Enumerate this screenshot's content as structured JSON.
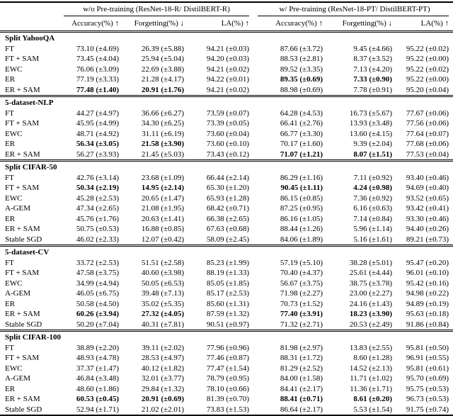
{
  "table": {
    "groups": [
      {
        "label": "w/o Pre-training (ResNet-18-R/ DistilBERT-R)"
      },
      {
        "label": "w/ Pre-training (ResNet-18-PT/ DistilBERT-PT)"
      }
    ],
    "columns": [
      "Accuracy(%) ↑",
      "Forgetting(%) ↓",
      "LA(%) ↑",
      "Accuracy(%) ↑",
      "Forgetting(%) ↓",
      "LA(%) ↑"
    ],
    "sections": [
      {
        "name": "Split YahooQA",
        "rows": [
          {
            "method": "FT",
            "values": [
              "73.10 (±4.69)",
              "26.39 (±5.88)",
              "94.21 (±0.03)",
              "87.66 (±3.72)",
              "9.45 (±4.66)",
              "95.22 (±0.02)"
            ],
            "bold": []
          },
          {
            "method": "FT + SAM",
            "values": [
              "73.45 (±4.04)",
              "25.94 (±5.04)",
              "94.20 (±0.03)",
              "88.53 (±2.81)",
              "8.37 (±3.52)",
              "95.22 (±0.00)"
            ],
            "bold": []
          },
          {
            "method": "EWC",
            "values": [
              "76.06 (±3.09)",
              "22.69 (±3.88)",
              "94.21 (±0.02)",
              "89.52 (±3.35)",
              "7.13 (±4.20)",
              "95.22 (±0.02)"
            ],
            "bold": []
          },
          {
            "method": "ER",
            "values": [
              "77.19 (±3.33)",
              "21.28 (±4.17)",
              "94.22 (±0.01)",
              "89.35 (±0.69)",
              "7.33 (±0.90)",
              "95.22 (±0.00)"
            ],
            "bold": [
              3,
              4
            ]
          },
          {
            "method": "ER + SAM",
            "values": [
              "77.48 (±1.40)",
              "20.91 (±1.76)",
              "94.21 (±0.02)",
              "88.98 (±0.69)",
              "7.78 (±0.91)",
              "95.20 (±0.04)"
            ],
            "bold": [
              0,
              1
            ]
          }
        ]
      },
      {
        "name": "5-dataset-NLP",
        "rows": [
          {
            "method": "FT",
            "values": [
              "44.27 (±4.97)",
              "36.66 (±6.27)",
              "73.59 (±0.07)",
              "64.28 (±4.53)",
              "16.73 (±5.67)",
              "77.67 (±0.06)"
            ],
            "bold": []
          },
          {
            "method": "FT + SAM",
            "values": [
              "45.95 (±4.99)",
              "34.30 (±6.25)",
              "73.39 (±0.05)",
              "66.41 (±2.76)",
              "13.93 (±3.48)",
              "77.56 (±0.06)"
            ],
            "bold": []
          },
          {
            "method": "EWC",
            "values": [
              "48.71 (±4.92)",
              "31.11 (±6.19)",
              "73.60 (±0.04)",
              "66.77 (±3.30)",
              "13.60 (±4.15)",
              "77.64 (±0.07)"
            ],
            "bold": []
          },
          {
            "method": "ER",
            "values": [
              "56.34 (±3.05)",
              "21.58 (±3.90)",
              "73.60 (±0.10)",
              "70.17 (±1.60)",
              "9.39 (±2.04)",
              "77.68 (±0.06)"
            ],
            "bold": [
              0,
              1
            ]
          },
          {
            "method": "ER + SAM",
            "values": [
              "56.27 (±3.93)",
              "21.45 (±5.03)",
              "73.43 (±0.12)",
              "71.07 (±1.21)",
              "8.07 (±1.51)",
              "77.53 (±0.04)"
            ],
            "bold": [
              3,
              4
            ]
          }
        ]
      },
      {
        "name": "Split CIFAR-50",
        "rows": [
          {
            "method": "FT",
            "values": [
              "42.76 (±3.14)",
              "23.68 (±1.09)",
              "66.44 (±2.14)",
              "86.29 (±1.16)",
              "7.11 (±0.92)",
              "93.40 (±0.46)"
            ],
            "bold": []
          },
          {
            "method": "FT + SAM",
            "values": [
              "50.34 (±2.19)",
              "14.95 (±2.14)",
              "65.30 (±1.20)",
              "90.45 (±1.11)",
              "4.24 (±0.98)",
              "94.69 (±0.40)"
            ],
            "bold": [
              0,
              1,
              3,
              4
            ]
          },
          {
            "method": "EWC",
            "values": [
              "45.28 (±2.53)",
              "20.65 (±1.47)",
              "65.93 (±1.28)",
              "86.15 (±0.85)",
              "7.36 (±0.92)",
              "93.52 (±0.65)"
            ],
            "bold": []
          },
          {
            "method": "A-GEM",
            "values": [
              "47.34 (±2.65)",
              "21.08 (±1.95)",
              "68.42 (±0.71)",
              "87.25 (±0.95)",
              "6.16 (±0.63)",
              "93.42 (±0.41)"
            ],
            "bold": []
          },
          {
            "method": "ER",
            "values": [
              "45.76 (±1.76)",
              "20.63 (±1.41)",
              "66.38 (±2.65)",
              "86.16 (±1.05)",
              "7.14 (±0.84)",
              "93.30 (±0.46)"
            ],
            "bold": []
          },
          {
            "method": "ER + SAM",
            "values": [
              "50.75 (±0.53)",
              "16.88 (±0.85)",
              "67.63 (±0.68)",
              "88.44 (±1.26)",
              "5.96 (±1.14)",
              "94.40 (±0.26)"
            ],
            "bold": []
          },
          {
            "method": "Stable SGD",
            "values": [
              "46.02 (±2.33)",
              "12.07 (±0.42)",
              "58.09 (±2.45)",
              "84.06 (±1.89)",
              "5.16 (±1.61)",
              "89.21 (±0.73)"
            ],
            "bold": []
          }
        ]
      },
      {
        "name": "5-dataset-CV",
        "rows": [
          {
            "method": "FT",
            "values": [
              "33.72 (±2.53)",
              "51.51 (±2.58)",
              "85.23 (±1.99)",
              "57.19 (±5.10)",
              "38.28 (±5.01)",
              "95.47 (±0.20)"
            ],
            "bold": []
          },
          {
            "method": "FT + SAM",
            "values": [
              "47.58 (±3.75)",
              "40.60 (±3.98)",
              "88.19 (±1.33)",
              "70.40 (±4.37)",
              "25.61 (±4.44)",
              "96.01 (±0.10)"
            ],
            "bold": []
          },
          {
            "method": "EWC",
            "values": [
              "34.99 (±4.94)",
              "50.05 (±6.53)",
              "85.05 (±1.85)",
              "56.67 (±3.75)",
              "38.75 (±3.78)",
              "95.42 (±0.16)"
            ],
            "bold": []
          },
          {
            "method": "A-GEM",
            "values": [
              "46.05 (±6.75)",
              "39.48 (±7.13)",
              "85.17 (±2.53)",
              "71.98 (±2.27)",
              "23.00 (±2.27)",
              "94.98 (±0.22)"
            ],
            "bold": []
          },
          {
            "method": "ER",
            "values": [
              "50.58 (±4.50)",
              "35.02 (±5.35)",
              "85.60 (±1.31)",
              "70.73 (±1.52)",
              "24.16 (±1.43)",
              "94.89 (±0.19)"
            ],
            "bold": []
          },
          {
            "method": "ER + SAM",
            "values": [
              "60.26 (±3.94)",
              "27.32 (±4.05)",
              "87.59 (±1.32)",
              "77.40 (±3.91)",
              "18.23 (±3.90)",
              "95.63 (±0.18)"
            ],
            "bold": [
              0,
              1,
              3,
              4
            ]
          },
          {
            "method": "Stable SGD",
            "values": [
              "50.20 (±7.04)",
              "40.31 (±7.81)",
              "90.51 (±0.97)",
              "71.32 (±2.71)",
              "20.53 (±2.49)",
              "91.86 (±0.84)"
            ],
            "bold": []
          }
        ]
      },
      {
        "name": "Split CIFAR-100",
        "rows": [
          {
            "method": "FT",
            "values": [
              "38.89 (±2.20)",
              "39.11 (±2.02)",
              "77.96 (±0.96)",
              "81.98 (±2.97)",
              "13.83 (±2.55)",
              "95.81 (±0.50)"
            ],
            "bold": []
          },
          {
            "method": "FT + SAM",
            "values": [
              "48.93 (±4.78)",
              "28.53 (±4.97)",
              "77.46 (±0.87)",
              "88.31 (±1.72)",
              "8.60 (±1.28)",
              "96.91 (±0.55)"
            ],
            "bold": []
          },
          {
            "method": "EWC",
            "values": [
              "37.37 (±1.47)",
              "40.12 (±1.82)",
              "77.47 (±1.54)",
              "81.29 (±2.52)",
              "14.52 (±2.13)",
              "95.81 (±0.61)"
            ],
            "bold": []
          },
          {
            "method": "A-GEM",
            "values": [
              "46.84 (±3.48)",
              "32.01 (±3.77)",
              "78.79 (±0.95)",
              "84.00 (±1.58)",
              "11.71 (±1.02)",
              "95.70 (±0.69)"
            ],
            "bold": []
          },
          {
            "method": "ER",
            "values": [
              "48.60 (±1.86)",
              "29.84 (±1.32)",
              "78.10 (±0.66)",
              "84.41 (±2.17)",
              "11.36 (±1.71)",
              "95.75 (±0.53)"
            ],
            "bold": []
          },
          {
            "method": "ER + SAM",
            "values": [
              "60.53 (±0.45)",
              "20.91 (±0.69)",
              "81.39 (±0.70)",
              "88.41 (±0.71)",
              "8.61 (±0.20)",
              "96.73 (±0.53)"
            ],
            "bold": [
              0,
              1,
              3,
              4
            ]
          },
          {
            "method": "Stable SGD",
            "values": [
              "52.94 (±1.71)",
              "21.02 (±2.01)",
              "73.83 (±1.53)",
              "86.64 (±2.17)",
              "5.53 (±1.54)",
              "91.75 (±0.74)"
            ],
            "bold": []
          }
        ]
      }
    ]
  }
}
